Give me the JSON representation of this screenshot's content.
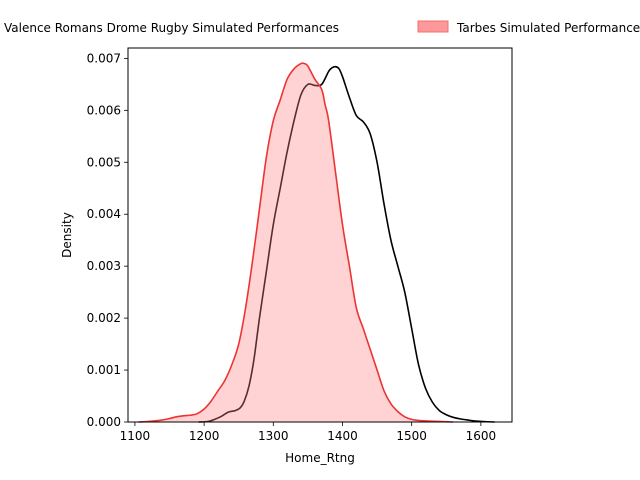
{
  "chart_data": {
    "type": "area",
    "xlabel": "Home_Rtng",
    "ylabel": "Density",
    "xlim": [
      1090,
      1645
    ],
    "ylim": [
      0,
      0.0072
    ],
    "xticks": [
      1100,
      1200,
      1300,
      1400,
      1500,
      1600
    ],
    "yticks": [
      0,
      0.001,
      0.002,
      0.003,
      0.004,
      0.005,
      0.006,
      0.007
    ],
    "ytick_labels": [
      "0.000",
      "0.001",
      "0.002",
      "0.003",
      "0.004",
      "0.005",
      "0.006",
      "0.007"
    ],
    "grid": false,
    "legend_position": "top",
    "series": [
      {
        "name": "Valence Romans Drome Rugby Simulated Performances",
        "color": "#000000",
        "fill": false,
        "points": [
          [
            1192,
            0.0
          ],
          [
            1205,
            1e-05
          ],
          [
            1215,
            5e-05
          ],
          [
            1225,
            0.00011
          ],
          [
            1235,
            0.00019
          ],
          [
            1245,
            0.00022
          ],
          [
            1252,
            0.00027
          ],
          [
            1258,
            0.0004
          ],
          [
            1265,
            0.0007
          ],
          [
            1272,
            0.0012
          ],
          [
            1280,
            0.002
          ],
          [
            1290,
            0.0029
          ],
          [
            1300,
            0.0038
          ],
          [
            1310,
            0.0045
          ],
          [
            1320,
            0.0052
          ],
          [
            1330,
            0.0058
          ],
          [
            1340,
            0.0063
          ],
          [
            1350,
            0.0065
          ],
          [
            1360,
            0.00648
          ],
          [
            1370,
            0.0065
          ],
          [
            1380,
            0.00675
          ],
          [
            1385,
            0.00682
          ],
          [
            1390,
            0.00684
          ],
          [
            1395,
            0.0068
          ],
          [
            1400,
            0.00665
          ],
          [
            1410,
            0.00625
          ],
          [
            1420,
            0.0059
          ],
          [
            1430,
            0.00578
          ],
          [
            1440,
            0.00555
          ],
          [
            1450,
            0.005
          ],
          [
            1460,
            0.0042
          ],
          [
            1470,
            0.0035
          ],
          [
            1480,
            0.003
          ],
          [
            1490,
            0.0025
          ],
          [
            1500,
            0.0018
          ],
          [
            1510,
            0.0011
          ],
          [
            1520,
            0.00065
          ],
          [
            1530,
            0.00038
          ],
          [
            1540,
            0.00022
          ],
          [
            1550,
            0.00014
          ],
          [
            1560,
            9e-05
          ],
          [
            1570,
            6e-05
          ],
          [
            1580,
            4e-05
          ],
          [
            1590,
            2e-05
          ],
          [
            1600,
            1e-05
          ],
          [
            1620,
            0.0
          ]
        ]
      },
      {
        "name": "Tarbes Simulated Performances",
        "color": "#ee3333",
        "fill": true,
        "fill_color": "#ff8080",
        "points": [
          [
            1105,
            0.0
          ],
          [
            1120,
            1e-05
          ],
          [
            1135,
            3e-05
          ],
          [
            1148,
            6e-05
          ],
          [
            1160,
            0.0001
          ],
          [
            1170,
            0.00012
          ],
          [
            1180,
            0.00013
          ],
          [
            1190,
            0.00016
          ],
          [
            1200,
            0.00025
          ],
          [
            1210,
            0.0004
          ],
          [
            1220,
            0.0006
          ],
          [
            1230,
            0.0008
          ],
          [
            1240,
            0.0011
          ],
          [
            1250,
            0.0015
          ],
          [
            1260,
            0.0022
          ],
          [
            1270,
            0.0031
          ],
          [
            1280,
            0.0041
          ],
          [
            1290,
            0.0051
          ],
          [
            1300,
            0.0058
          ],
          [
            1310,
            0.0062
          ],
          [
            1320,
            0.0066
          ],
          [
            1330,
            0.0068
          ],
          [
            1340,
            0.0069
          ],
          [
            1345,
            0.0069
          ],
          [
            1350,
            0.00685
          ],
          [
            1360,
            0.0066
          ],
          [
            1370,
            0.0064
          ],
          [
            1375,
            0.0061
          ],
          [
            1380,
            0.0058
          ],
          [
            1390,
            0.0048
          ],
          [
            1400,
            0.0038
          ],
          [
            1410,
            0.003
          ],
          [
            1420,
            0.0022
          ],
          [
            1430,
            0.0018
          ],
          [
            1440,
            0.0014
          ],
          [
            1450,
            0.001
          ],
          [
            1460,
            0.0006
          ],
          [
            1470,
            0.00035
          ],
          [
            1480,
            0.0002
          ],
          [
            1490,
            0.0001
          ],
          [
            1500,
            5e-05
          ],
          [
            1510,
            3e-05
          ],
          [
            1520,
            2e-05
          ],
          [
            1540,
            1e-05
          ],
          [
            1560,
            0.0
          ]
        ]
      }
    ]
  }
}
